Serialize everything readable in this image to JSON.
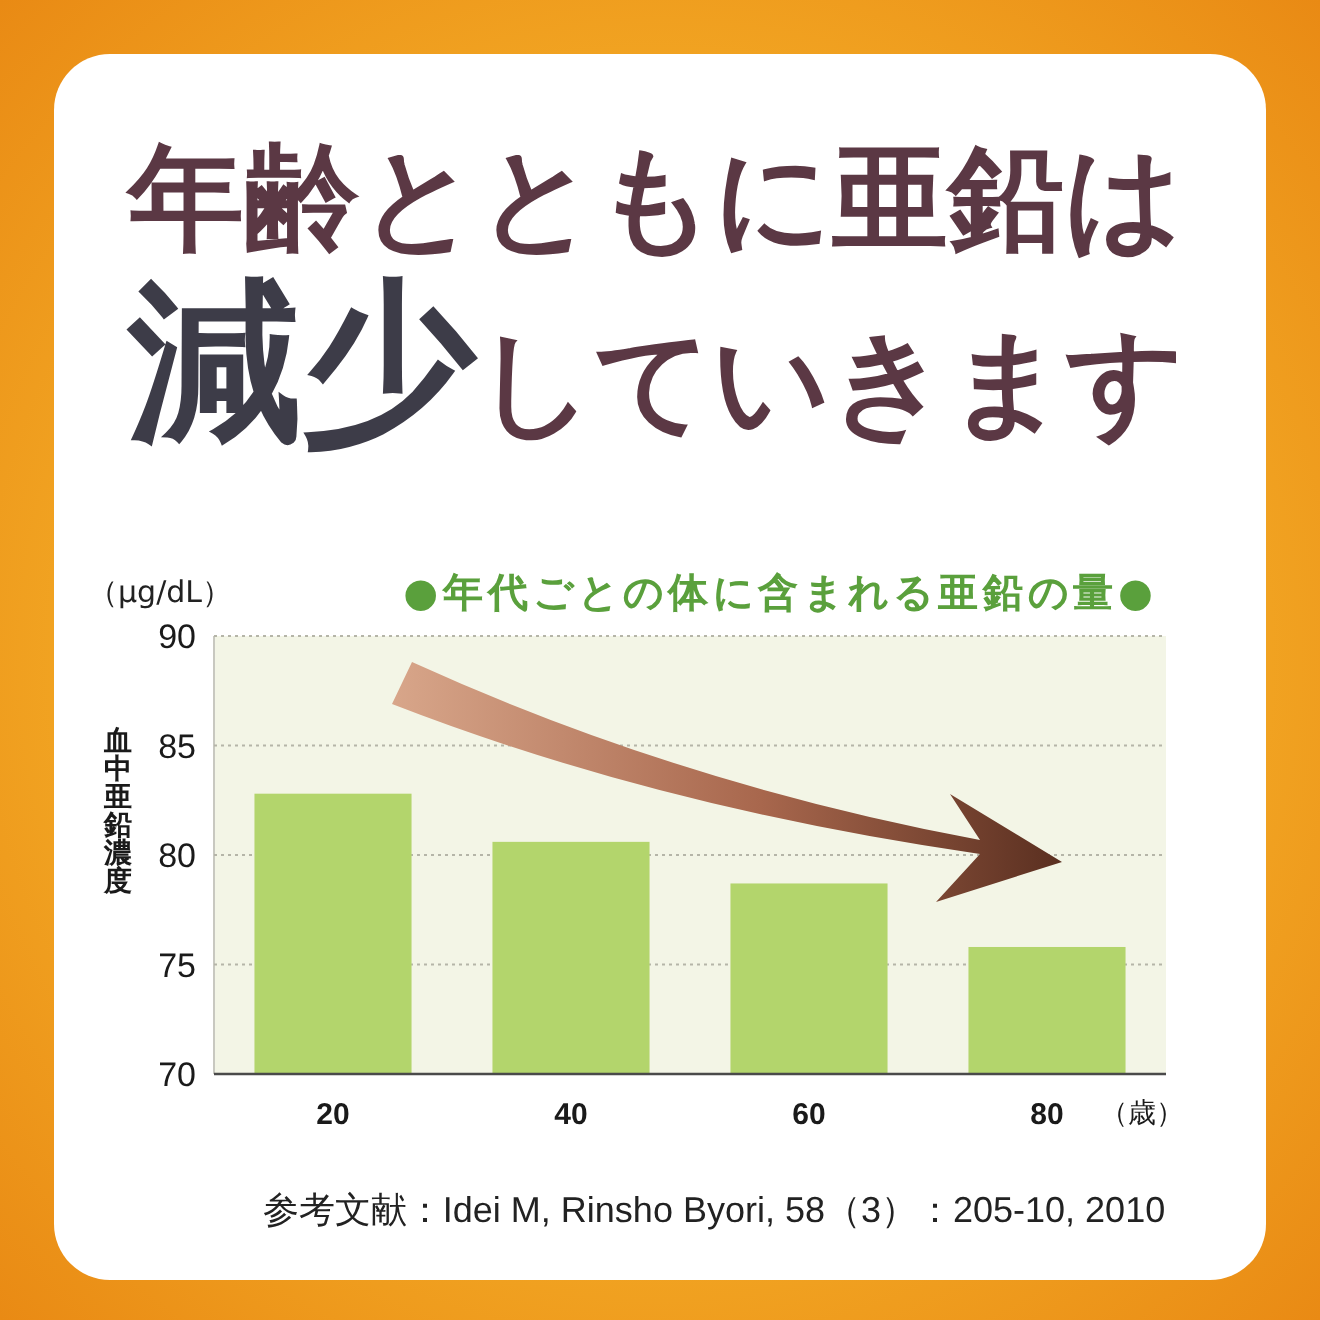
{
  "chart_data": {
    "type": "bar",
    "title": "年齢とともに亜鉛は**減少**していきます",
    "subtitle": "●年代ごとの体に含まれる亜鉛の量●",
    "xlabel": "（歳）",
    "ylabel": "血中亜鉛濃度",
    "categories": [
      "20",
      "40",
      "60",
      "80"
    ],
    "values": [
      82.8,
      80.6,
      78.7,
      75.8
    ],
    "color": "#b3d56c",
    "ylim": [
      70,
      90
    ],
    "yticks": [
      70,
      75,
      80,
      85,
      90
    ],
    "grid": "y",
    "annotations": [
      "（μg/dL）",
      "参考文献：Idei M, Rinsho Byori, 58（3）：205-10, 2010"
    ]
  }
}
